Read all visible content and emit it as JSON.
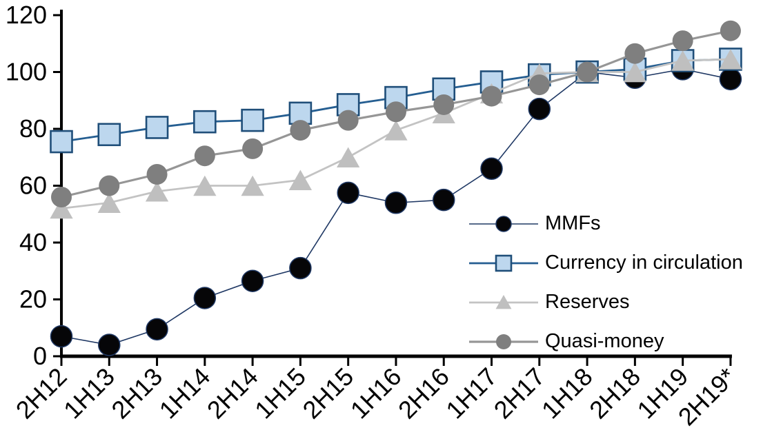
{
  "chart_data": {
    "type": "line",
    "title": "",
    "xlabel": "",
    "ylabel": "",
    "categories": [
      "2H12",
      "1H13",
      "2H13",
      "1H14",
      "2H14",
      "1H15",
      "2H15",
      "1H16",
      "2H16",
      "1H17",
      "2H17",
      "1H18",
      "2H18",
      "1H19",
      "2H19*"
    ],
    "series": [
      {
        "name": "MMFs",
        "marker": "circle",
        "marker_size": 15.5,
        "marker_fill": "#060608",
        "marker_stroke": "#1F3864",
        "marker_stroke_width": 1.5,
        "line_color": "#1F3864",
        "line_width": 1.6,
        "values": [
          7,
          4,
          9.5,
          20.5,
          26.5,
          31,
          57.5,
          54,
          55,
          66,
          87,
          100,
          98,
          101,
          97.5
        ]
      },
      {
        "name": "Currency in circulation",
        "marker": "square",
        "marker_size": 15.5,
        "marker_fill": "#BDD7EE",
        "marker_stroke": "#1F4E79",
        "marker_stroke_width": 2.6,
        "line_color": "#255E91",
        "line_width": 2.8,
        "values": [
          75.5,
          78,
          80.5,
          82.5,
          83,
          85.5,
          88.5,
          91,
          94,
          96.5,
          99,
          100,
          101,
          104,
          104.5
        ]
      },
      {
        "name": "Reserves",
        "marker": "triangle",
        "marker_size": 16,
        "marker_fill": "#BFBFBF",
        "marker_stroke": "#BFBFBF",
        "marker_stroke_width": 0,
        "line_color": "#C3C3C3",
        "line_width": 2.8,
        "values": [
          52,
          54,
          58,
          60,
          60,
          62,
          70,
          79.5,
          85.5,
          92.5,
          99.5,
          100,
          100,
          104,
          104.5
        ]
      },
      {
        "name": "Quasi-money",
        "marker": "circle",
        "marker_size": 15,
        "marker_fill": "#7F7F7F",
        "marker_stroke": "#7F7F7F",
        "marker_stroke_width": 0,
        "line_color": "#969696",
        "line_width": 3.2,
        "values": [
          56,
          60,
          64,
          70.5,
          73,
          79.5,
          83,
          86,
          88.5,
          91.5,
          95.5,
          100,
          106.5,
          111,
          114.5
        ]
      }
    ],
    "y_axis": {
      "min": 0,
      "max": 120,
      "step": 20,
      "tick_labels": [
        "0",
        "20",
        "40",
        "60",
        "80",
        "100",
        "120"
      ]
    },
    "x_axis": {
      "label_rotation_deg": -45
    },
    "grid": false,
    "legend_position": "inside-right",
    "axis_color": "#000000",
    "text_color": "#000000"
  }
}
